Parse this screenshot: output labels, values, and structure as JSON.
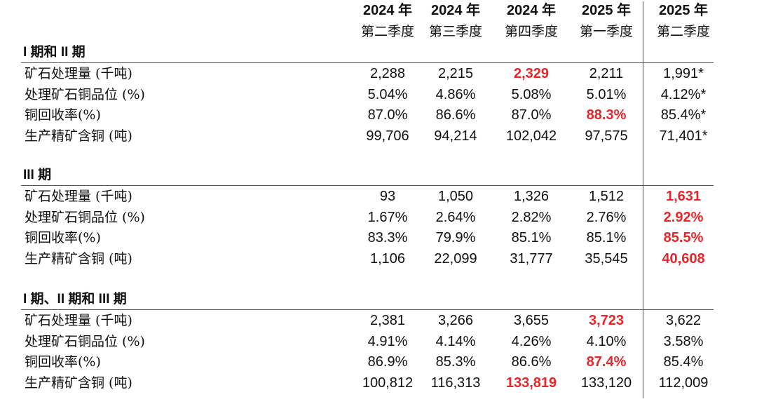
{
  "table": {
    "columns": [
      {
        "year": "2024 年",
        "quarter": "第二季度"
      },
      {
        "year": "2024 年",
        "quarter": "第三季度"
      },
      {
        "year": "2024 年",
        "quarter": "第四季度"
      },
      {
        "year": "2025 年",
        "quarter": "第一季度"
      },
      {
        "year": "2025 年",
        "quarter": "第二季度"
      }
    ],
    "sections": [
      {
        "title": "I 期和 II 期",
        "rows": [
          {
            "label": "矿石处理量 (千吨)",
            "values": [
              "2,288",
              "2,215",
              {
                "text": "2,329",
                "color": "#e8262a"
              },
              "2,211",
              "1,991*"
            ]
          },
          {
            "label": "处理矿石铜品位 (%)",
            "values": [
              "5.04%",
              "4.86%",
              "5.08%",
              "5.01%",
              "4.12%*"
            ]
          },
          {
            "label": "铜回收率(%)",
            "values": [
              "87.0%",
              "86.6%",
              "87.0%",
              {
                "text": "88.3%",
                "color": "#e8262a"
              },
              "85.4%*"
            ]
          },
          {
            "label": "生产精矿含铜 (吨)",
            "values": [
              "99,706",
              "94,214",
              "102,042",
              "97,575",
              "71,401*"
            ]
          }
        ]
      },
      {
        "title": "III 期",
        "rows": [
          {
            "label": "矿石处理量 (千吨)",
            "values": [
              "93",
              "1,050",
              "1,326",
              "1,512",
              {
                "text": "1,631",
                "color": "#e8262a"
              }
            ]
          },
          {
            "label": "处理矿石铜品位 (%)",
            "values": [
              "1.67%",
              "2.64%",
              "2.82%",
              "2.76%",
              {
                "text": "2.92%",
                "color": "#e8262a"
              }
            ]
          },
          {
            "label": "铜回收率(%)",
            "values": [
              "83.3%",
              "79.9%",
              "85.1%",
              "85.1%",
              {
                "text": "85.5%",
                "color": "#e8262a"
              }
            ]
          },
          {
            "label": "生产精矿含铜 (吨)",
            "values": [
              "1,106",
              "22,099",
              "31,777",
              "35,545",
              {
                "text": "40,608",
                "color": "#e8262a"
              }
            ]
          }
        ]
      },
      {
        "title": "I 期、II 期和 III 期",
        "rows": [
          {
            "label": "矿石处理量 (千吨)",
            "values": [
              "2,381",
              "3,266",
              "3,655",
              {
                "text": "3,723",
                "color": "#e8262a"
              },
              "3,622"
            ]
          },
          {
            "label": "处理矿石铜品位 (%)",
            "values": [
              "4.91%",
              "4.14%",
              "4.26%",
              "4.10%",
              "3.58%"
            ]
          },
          {
            "label": "铜回收率(%)",
            "values": [
              "86.9%",
              "85.3%",
              "86.6%",
              {
                "text": "87.4%",
                "color": "#e8262a"
              },
              "85.4%"
            ]
          },
          {
            "label": "生产精矿含铜 (吨)",
            "values": [
              "100,812",
              "116,313",
              {
                "text": "133,819",
                "color": "#e8262a"
              },
              "133,120",
              "112,009"
            ]
          }
        ]
      }
    ]
  }
}
